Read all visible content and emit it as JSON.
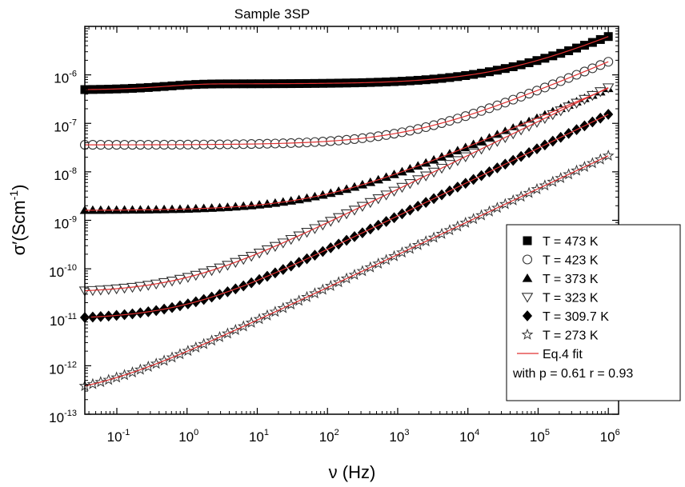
{
  "chart_data": {
    "type": "scatter",
    "title": "Sample 3SP",
    "xlabel": "ν (Hz)",
    "ylabel": "σ′(Scm⁻¹)",
    "ylabel_main": "σ′(Scm",
    "ylabel_sup": "-1",
    "ylabel_close": ")",
    "x_scale": "log",
    "y_scale": "log",
    "xlim": [
      0.035,
      1400000
    ],
    "ylim": [
      1e-13,
      1e-05
    ],
    "x_ticks": [
      0.1,
      1,
      10,
      100,
      1000,
      10000,
      100000,
      1000000
    ],
    "x_tick_labels": [
      {
        "base": "10",
        "exp": "-1"
      },
      {
        "base": "10",
        "exp": "0"
      },
      {
        "base": "10",
        "exp": "1"
      },
      {
        "base": "10",
        "exp": "2"
      },
      {
        "base": "10",
        "exp": "3"
      },
      {
        "base": "10",
        "exp": "4"
      },
      {
        "base": "10",
        "exp": "5"
      },
      {
        "base": "10",
        "exp": "6"
      }
    ],
    "y_ticks": [
      1e-13,
      1e-12,
      1e-11,
      1e-10,
      1e-09,
      1e-08,
      1e-07,
      1e-06
    ],
    "y_tick_labels": [
      {
        "base": "10",
        "exp": "-13"
      },
      {
        "base": "10",
        "exp": "-12"
      },
      {
        "base": "10",
        "exp": "-11"
      },
      {
        "base": "10",
        "exp": "-10"
      },
      {
        "base": "10",
        "exp": "-9"
      },
      {
        "base": "10",
        "exp": "-8"
      },
      {
        "base": "10",
        "exp": "-7"
      },
      {
        "base": "10",
        "exp": "-6"
      }
    ],
    "grid": false,
    "legend_position": "bottom-right",
    "fit_color": "#e03030",
    "series": [
      {
        "name": "T = 473 K",
        "marker": "square-filled",
        "sigma_dc": 6.5e-07,
        "nu_c": 30000,
        "n": 0.61,
        "low_freq_dip": {
          "amount": 0.25,
          "scale": 0.6
        }
      },
      {
        "name": "T = 423 K",
        "marker": "circle-open",
        "sigma_dc": 3.6e-08,
        "nu_c": 1600,
        "n": 0.61
      },
      {
        "name": "T = 373 K",
        "marker": "triangle-up-filled",
        "sigma_dc": 1.6e-09,
        "nu_c": 75,
        "n": 0.61
      },
      {
        "name": "T = 323 K",
        "marker": "triangle-down-open",
        "sigma_dc": 3.2e-11,
        "nu_c": 0.9,
        "n": 0.7
      },
      {
        "name": "T = 309.7 K",
        "marker": "diamond-filled",
        "sigma_dc": 9e-12,
        "nu_c": 0.9,
        "n": 0.7
      },
      {
        "name": "T = 273 K",
        "marker": "star-open",
        "sigma_dc": 2e-13,
        "nu_c": 0.04,
        "n": 0.68
      }
    ],
    "fit_legend": {
      "label": "Eq.4 fit",
      "params": "with p = 0.61 r = 0.93"
    }
  }
}
